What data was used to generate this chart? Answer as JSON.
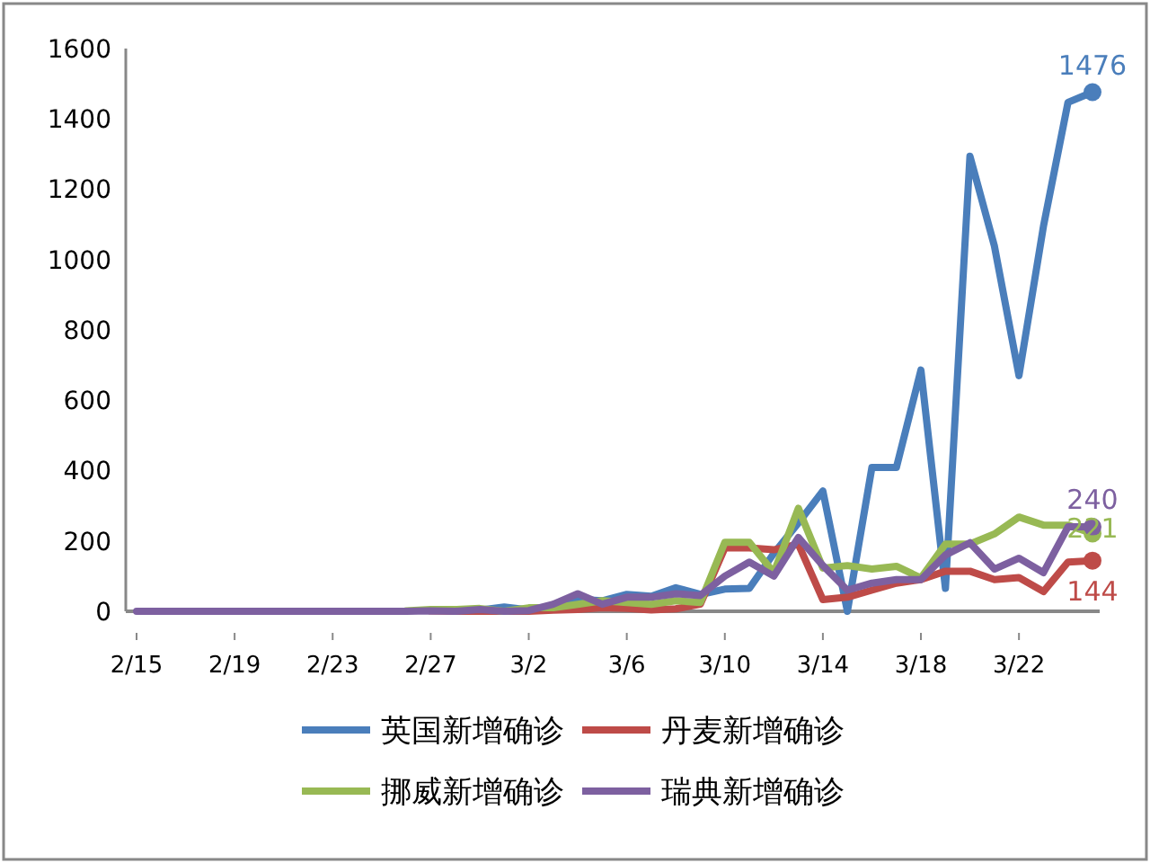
{
  "chart_data": {
    "type": "line",
    "categories": [
      "2/15",
      null,
      null,
      null,
      "2/19",
      null,
      null,
      null,
      "2/23",
      null,
      null,
      null,
      "2/27",
      null,
      null,
      null,
      "3/2",
      null,
      null,
      null,
      "3/6",
      null,
      null,
      null,
      "3/10",
      null,
      null,
      null,
      "3/14",
      null,
      null,
      null,
      "3/18",
      null,
      null,
      null,
      "3/22",
      null,
      null,
      null
    ],
    "ylim": [
      0,
      1600
    ],
    "yticks": [
      0,
      200,
      400,
      600,
      800,
      1000,
      1200,
      1400,
      1600
    ],
    "grid": false,
    "legend": "bottom",
    "marker": "none",
    "line_style": "solid",
    "series": [
      {
        "name": "英国新增确诊",
        "color": "#4a7ebb",
        "values": [
          null,
          null,
          null,
          null,
          null,
          null,
          null,
          null,
          null,
          null,
          null,
          null,
          null,
          3,
          3,
          12,
          4,
          11,
          34,
          30,
          48,
          43,
          67,
          48,
          63,
          65,
          165,
          251,
          342,
          0,
          409,
          409,
          686,
          65,
          1294,
          1038,
          670,
          1095,
          1447,
          1476
        ],
        "value_labels": [
          null,
          null,
          null,
          null,
          null,
          null,
          null,
          null,
          null,
          null,
          null,
          null,
          null,
          null,
          null,
          null,
          null,
          null,
          null,
          null,
          null,
          null,
          null,
          null,
          null,
          null,
          null,
          null,
          null,
          null,
          null,
          null,
          null,
          null,
          null,
          null,
          null,
          null,
          null,
          "1476"
        ]
      },
      {
        "name": "丹麦新增确诊",
        "color": "#be4b48",
        "values": [
          null,
          null,
          null,
          null,
          null,
          null,
          null,
          null,
          null,
          null,
          null,
          null,
          1,
          0,
          0,
          0,
          0,
          3,
          5,
          10,
          8,
          4,
          7,
          20,
          180,
          180,
          175,
          191,
          33,
          40,
          60,
          80,
          90,
          114,
          114,
          90,
          96,
          56,
          140,
          144
        ],
        "value_labels": [
          null,
          null,
          null,
          null,
          null,
          null,
          null,
          null,
          null,
          null,
          null,
          null,
          null,
          null,
          null,
          null,
          null,
          null,
          null,
          null,
          null,
          null,
          null,
          null,
          null,
          null,
          null,
          null,
          null,
          null,
          null,
          null,
          null,
          null,
          null,
          null,
          null,
          null,
          null,
          "144"
        ]
      },
      {
        "name": "挪威新增确诊",
        "color": "#98b954",
        "values": [
          null,
          null,
          null,
          null,
          null,
          null,
          null,
          null,
          null,
          null,
          null,
          1,
          5,
          5,
          8,
          0,
          10,
          10,
          20,
          30,
          25,
          20,
          30,
          25,
          196,
          196,
          110,
          293,
          123,
          130,
          120,
          128,
          95,
          191,
          191,
          220,
          268,
          245,
          245,
          221
        ],
        "value_labels": [
          null,
          null,
          null,
          null,
          null,
          null,
          null,
          null,
          null,
          null,
          null,
          null,
          null,
          null,
          null,
          null,
          null,
          null,
          null,
          null,
          null,
          null,
          null,
          null,
          null,
          null,
          null,
          null,
          null,
          null,
          null,
          null,
          null,
          null,
          null,
          null,
          null,
          null,
          null,
          "221"
        ]
      },
      {
        "name": "瑞典新增确诊",
        "color": "#7d60a0",
        "values": [
          0,
          0,
          0,
          0,
          0,
          0,
          0,
          0,
          0,
          0,
          0,
          0,
          1,
          0,
          5,
          0,
          2,
          20,
          50,
          20,
          40,
          40,
          50,
          45,
          100,
          140,
          100,
          210,
          130,
          60,
          80,
          90,
          90,
          160,
          195,
          120,
          151,
          110,
          240,
          240
        ],
        "value_labels": [
          null,
          null,
          null,
          null,
          null,
          null,
          null,
          null,
          null,
          null,
          null,
          null,
          null,
          null,
          null,
          null,
          null,
          null,
          null,
          null,
          null,
          null,
          null,
          null,
          null,
          null,
          null,
          null,
          null,
          null,
          null,
          null,
          null,
          null,
          null,
          null,
          null,
          null,
          null,
          "240"
        ]
      }
    ]
  }
}
